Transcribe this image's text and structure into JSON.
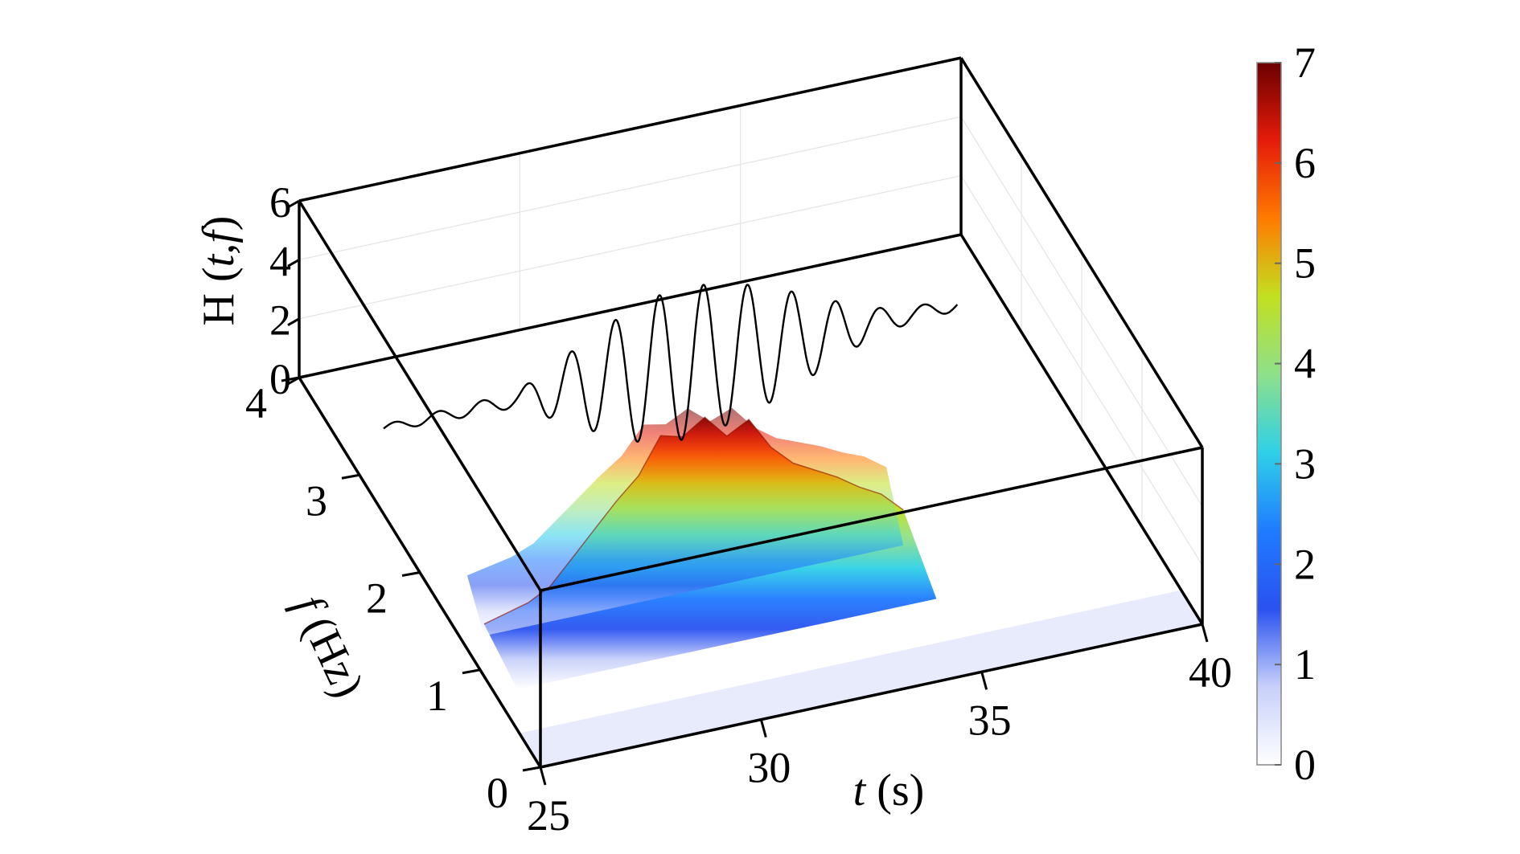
{
  "chart_data": {
    "type": "surface3d",
    "title": "",
    "axes": {
      "t": {
        "label_var": "t",
        "label_unit": " (s)",
        "range": [
          25,
          40
        ],
        "ticks": [
          "25",
          "30",
          "35",
          "40"
        ]
      },
      "f": {
        "label_var": "f",
        "label_unit": " (Hz)",
        "range": [
          0,
          4
        ],
        "ticks": [
          "0",
          "1",
          "2",
          "3",
          "4"
        ]
      },
      "z": {
        "label_prefix": "H (",
        "label_var": "t,f",
        "label_suffix": ")",
        "range": [
          0,
          6
        ],
        "ticks": [
          "0",
          "2",
          "4",
          "6"
        ]
      }
    },
    "colorbar": {
      "range": [
        0,
        7
      ],
      "ticks": [
        "0",
        "1",
        "2",
        "3",
        "4",
        "5",
        "6",
        "7"
      ],
      "colormap": [
        "#ffffff",
        "#c8d0fa",
        "#2a52f0",
        "#1f7bff",
        "#2fd0e8",
        "#8ee08a",
        "#c2e020",
        "#ff7a00",
        "#e51b0a",
        "#6b0000"
      ]
    },
    "surface_ridge": {
      "f_hz": 1.3,
      "t": [
        25.5,
        26.5,
        27.0,
        27.5,
        28.0,
        28.5,
        29.0,
        29.5,
        30.0,
        30.5,
        31.0,
        31.5,
        32.0,
        32.5,
        33.0,
        33.5,
        34.0,
        34.5,
        35.0
      ],
      "h": [
        0.4,
        0.8,
        1.2,
        2.0,
        2.8,
        3.6,
        4.3,
        5.5,
        5.3,
        5.8,
        5.0,
        5.4,
        4.3,
        3.6,
        3.2,
        2.8,
        2.3,
        1.9,
        1.2
      ]
    },
    "signal_trace": {
      "f_hz": 2.6,
      "t": [
        25.0,
        28.0,
        29.0,
        30.0,
        31.0,
        32.0,
        33.0,
        34.0,
        35.0,
        36.0,
        37.0,
        38.0
      ],
      "amplitude": [
        0.05,
        0.1,
        0.4,
        0.7,
        0.95,
        1.0,
        0.9,
        0.7,
        0.45,
        0.2,
        0.1,
        0.08
      ],
      "period_s": 1.0
    }
  }
}
